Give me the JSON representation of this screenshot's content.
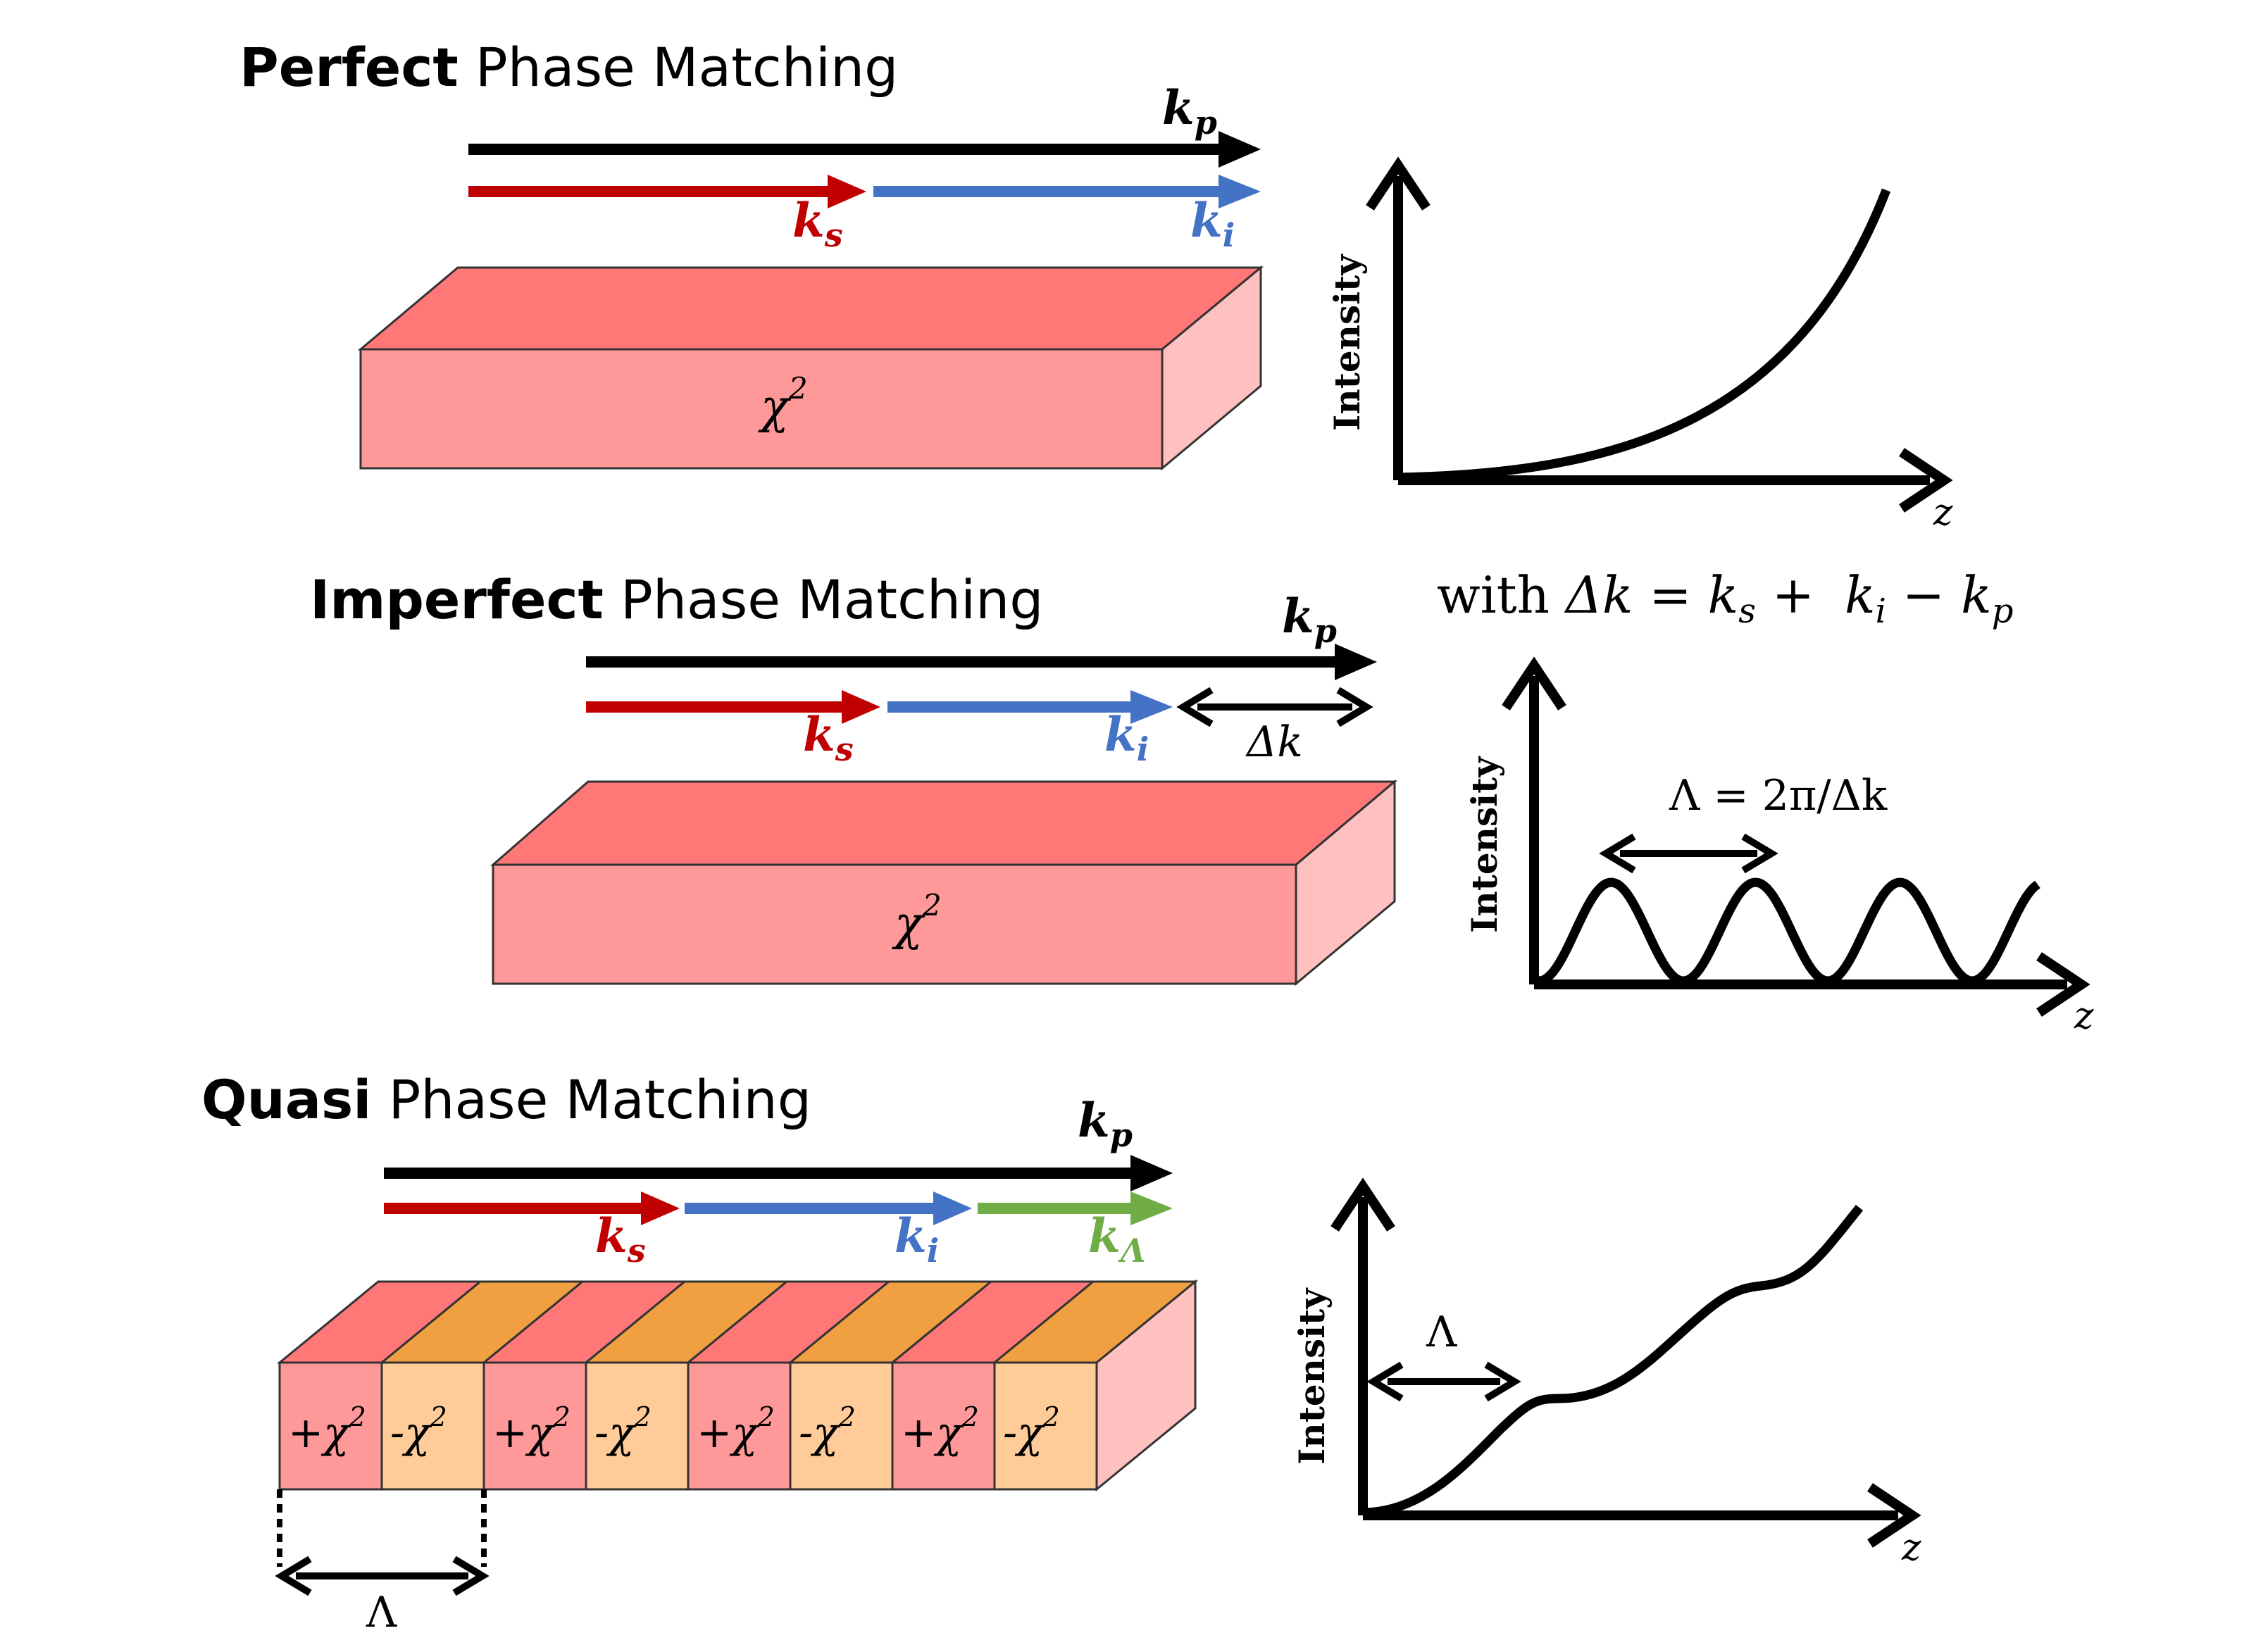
{
  "panels": {
    "perfect": {
      "title_bold": "Perfect",
      "title_rest": " Phase Matching",
      "material": "χ",
      "material_sup": "2",
      "axis_y": "Intensity",
      "axis_x": "z"
    },
    "imperfect": {
      "title_bold": "Imperfect",
      "title_rest": " Phase Matching",
      "material": "χ",
      "material_sup": "2",
      "mismatch_label": "Δk",
      "axis_y": "Intensity",
      "axis_x": "z",
      "period_label": "Λ = 2π/Δk"
    },
    "quasi": {
      "title_bold": "Quasi",
      "title_rest": " Phase Matching",
      "segments": [
        "+χ",
        "-χ",
        "+χ",
        "-χ",
        "+χ",
        "-χ",
        "+χ",
        "-χ"
      ],
      "segment_sup": "2",
      "period_label": "Λ",
      "axis_y": "Intensity",
      "axis_x": "z",
      "plot_period_label": "Λ"
    }
  },
  "vectors": {
    "k": "k",
    "p": "p",
    "s": "s",
    "i": "i",
    "lambda": "Λ"
  },
  "equation": {
    "with": "with ",
    "delta_k": "Δk",
    "equals": " = ",
    "plus": " + ",
    "minus": " − "
  },
  "colors": {
    "pump": "#000000",
    "signal": "#c00000",
    "idler": "#4472c4",
    "grating": "#70ad47",
    "crystal_front": "#ff9999",
    "crystal_top": "#ff7777",
    "crystal_side": "#ffc0c0",
    "domain_neg_front": "#ffcc99",
    "domain_neg_top": "#f0a040"
  }
}
